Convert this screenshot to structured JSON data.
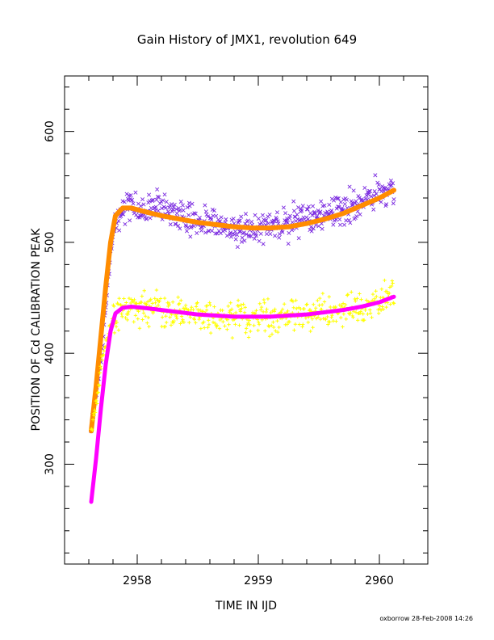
{
  "chart_data": {
    "type": "scatter",
    "title": "Gain History of JMX1, revolution 649",
    "xlabel": "TIME IN IJD",
    "ylabel": "POSITION OF Cd CALIBRATION PEAK",
    "xlim": [
      2957.4,
      2960.4
    ],
    "ylim": [
      210,
      650
    ],
    "x_ticks": [
      2958,
      2959,
      2960
    ],
    "y_ticks": [
      300,
      400,
      500,
      600
    ],
    "grid": false,
    "legend": "none",
    "footer": "oxborrow 28-Feb-2008 14:26",
    "series": [
      {
        "marker": "x",
        "color": "#7b2be0",
        "scatter_range": [
          470,
          560
        ],
        "points": [
          [
            2957.62,
            335
          ],
          [
            2957.66,
            360
          ],
          [
            2957.7,
            395
          ],
          [
            2957.74,
            440
          ],
          [
            2957.78,
            490
          ],
          [
            2957.82,
            520
          ],
          [
            2957.88,
            530
          ],
          [
            2957.95,
            535
          ],
          [
            2958.05,
            528
          ],
          [
            2958.2,
            532
          ],
          [
            2958.35,
            525
          ],
          [
            2958.5,
            520
          ],
          [
            2958.65,
            518
          ],
          [
            2958.8,
            510
          ],
          [
            2958.95,
            512
          ],
          [
            2959.1,
            515
          ],
          [
            2959.25,
            518
          ],
          [
            2959.4,
            522
          ],
          [
            2959.55,
            525
          ],
          [
            2959.7,
            530
          ],
          [
            2959.85,
            535
          ],
          [
            2960.0,
            545
          ],
          [
            2960.12,
            548
          ]
        ]
      },
      {
        "marker": "line",
        "color": "#ff8c00",
        "points": [
          [
            2957.62,
            330
          ],
          [
            2957.66,
            370
          ],
          [
            2957.7,
            415
          ],
          [
            2957.74,
            460
          ],
          [
            2957.78,
            500
          ],
          [
            2957.82,
            524
          ],
          [
            2957.88,
            531
          ],
          [
            2957.95,
            531
          ],
          [
            2958.05,
            528
          ],
          [
            2958.2,
            524
          ],
          [
            2958.35,
            521
          ],
          [
            2958.5,
            518
          ],
          [
            2958.65,
            516
          ],
          [
            2958.8,
            514
          ],
          [
            2958.95,
            513
          ],
          [
            2959.1,
            513
          ],
          [
            2959.25,
            514
          ],
          [
            2959.4,
            517
          ],
          [
            2959.55,
            521
          ],
          [
            2959.7,
            526
          ],
          [
            2959.85,
            533
          ],
          [
            2960.0,
            540
          ],
          [
            2960.12,
            547
          ]
        ]
      },
      {
        "marker": "+",
        "color": "#ffff00",
        "scatter_range": [
          385,
          475
        ],
        "points": [
          [
            2957.62,
            330
          ],
          [
            2957.66,
            355
          ],
          [
            2957.7,
            385
          ],
          [
            2957.74,
            410
          ],
          [
            2957.78,
            425
          ],
          [
            2957.82,
            435
          ],
          [
            2957.88,
            440
          ],
          [
            2957.95,
            445
          ],
          [
            2958.05,
            440
          ],
          [
            2958.2,
            438
          ],
          [
            2958.35,
            436
          ],
          [
            2958.5,
            434
          ],
          [
            2958.65,
            432
          ],
          [
            2958.8,
            432
          ],
          [
            2958.95,
            431
          ],
          [
            2959.1,
            432
          ],
          [
            2959.25,
            433
          ],
          [
            2959.4,
            434
          ],
          [
            2959.55,
            436
          ],
          [
            2959.7,
            438
          ],
          [
            2959.85,
            442
          ],
          [
            2960.0,
            447
          ],
          [
            2960.12,
            452
          ]
        ]
      },
      {
        "marker": "line",
        "color": "#ff00ff",
        "points": [
          [
            2957.62,
            266
          ],
          [
            2957.66,
            305
          ],
          [
            2957.7,
            350
          ],
          [
            2957.74,
            390
          ],
          [
            2957.78,
            420
          ],
          [
            2957.82,
            436
          ],
          [
            2957.88,
            441
          ],
          [
            2957.95,
            442
          ],
          [
            2958.05,
            441
          ],
          [
            2958.2,
            439
          ],
          [
            2958.35,
            437
          ],
          [
            2958.5,
            435
          ],
          [
            2958.65,
            434
          ],
          [
            2958.8,
            433
          ],
          [
            2958.95,
            433
          ],
          [
            2959.1,
            433
          ],
          [
            2959.25,
            434
          ],
          [
            2959.4,
            435
          ],
          [
            2959.55,
            437
          ],
          [
            2959.7,
            439
          ],
          [
            2959.85,
            442
          ],
          [
            2960.0,
            446
          ],
          [
            2960.12,
            451
          ]
        ]
      }
    ]
  }
}
